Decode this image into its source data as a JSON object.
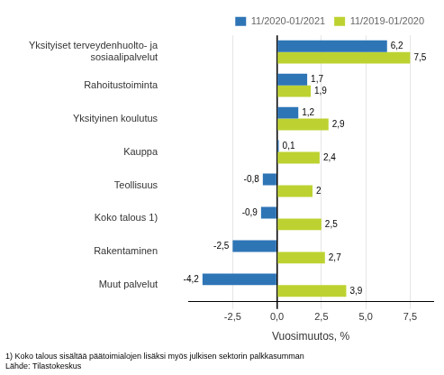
{
  "chart_data": {
    "type": "bar",
    "orientation": "horizontal",
    "categories": [
      "Muut palvelut",
      "Rakentaminen",
      "Koko talous 1)",
      "Teollisuus",
      "Kauppa",
      "Yksityinen koulutus",
      "Rahoitustoiminta",
      "Yksityiset terveydenhuolto- ja\nsosiaalipalvelut"
    ],
    "series": [
      {
        "name": "11/2020-01/2021",
        "color": "#2E75B6",
        "values": [
          -4.2,
          -2.5,
          -0.9,
          -0.8,
          0.1,
          1.2,
          1.7,
          6.2
        ],
        "value_labels": [
          "-4,2",
          "-2,5",
          "-0,9",
          "-0,8",
          "0,1",
          "1,2",
          "1,7",
          "6,2"
        ]
      },
      {
        "name": "11/2019-01/2020",
        "color": "#BDD231",
        "values": [
          3.9,
          2.7,
          2.5,
          2.0,
          2.4,
          2.9,
          1.9,
          7.5
        ],
        "value_labels": [
          "3,9",
          "2,7",
          "2,5",
          "2",
          "2,4",
          "2,9",
          "1,9",
          "7,5"
        ]
      }
    ],
    "xlabel": "Vuosimuutos, %",
    "xlim": [
      -5.0,
      8.8
    ],
    "xticks": [
      {
        "value": -2.5,
        "label": "-2,5"
      },
      {
        "value": 0.0,
        "label": "0,0"
      },
      {
        "value": 2.5,
        "label": "2,5"
      },
      {
        "value": 5.0,
        "label": "5,0"
      },
      {
        "value": 7.5,
        "label": "7,5"
      }
    ],
    "grid": true,
    "legend": "upper right",
    "data_labels": true,
    "annotations": [
      "1) Koko talous sisältää päätoimialojen lisäksi myös julkisen sektorin palkkasumman",
      "Lähde: Tilastokeskus"
    ]
  }
}
